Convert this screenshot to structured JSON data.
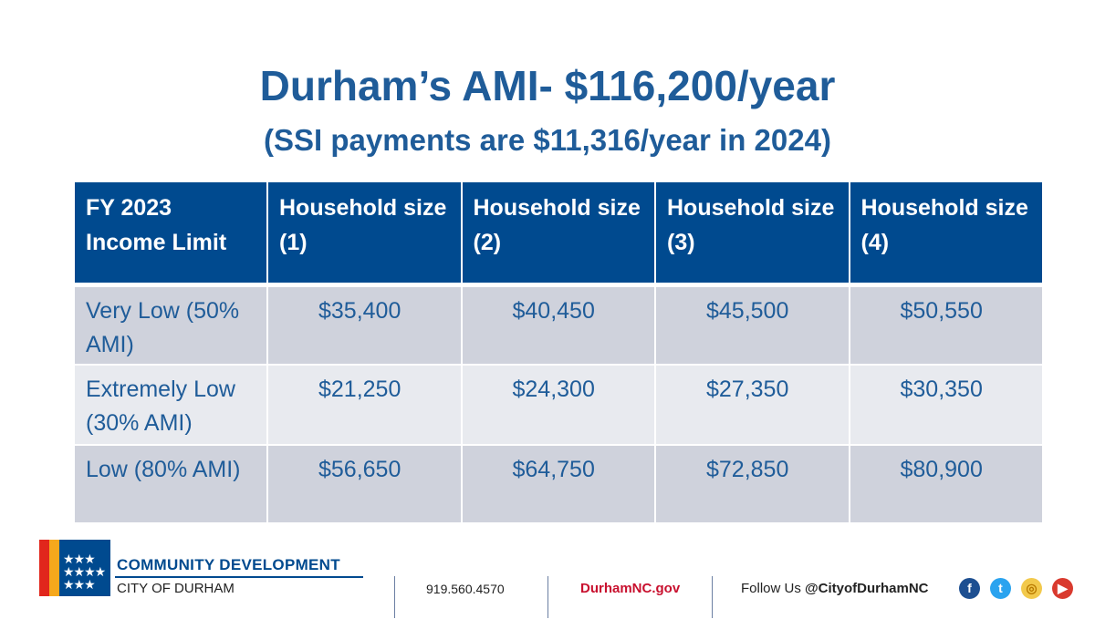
{
  "title": "Durham’s AMI- $116,200/year",
  "subtitle": "(SSI payments are $11,316/year in 2024)",
  "table": {
    "headers": [
      "FY 2023 Income Limit",
      "Household size (1)",
      "Household size (2)",
      "Household size (3)",
      "Household size (4)"
    ],
    "rows": [
      {
        "label": "Very Low (50% AMI)",
        "values": [
          "$35,400",
          "$40,450",
          "$45,500",
          "$50,550"
        ]
      },
      {
        "label": "Extremely Low (30% AMI)",
        "values": [
          "$21,250",
          "$24,300",
          "$27,350",
          "$30,350"
        ]
      },
      {
        "label": "Low (80% AMI)",
        "values": [
          "$56,650",
          "$64,750",
          "$72,850",
          "$80,900"
        ]
      }
    ]
  },
  "footer": {
    "org_name": "COMMUNITY DEVELOPMENT",
    "org_sub": "CITY OF DURHAM",
    "phone": "919.560.4570",
    "website": "DurhamNC.gov",
    "follow_label": "Follow Us",
    "handle": "@CityofDurhamNC",
    "social_icons": [
      "facebook-icon",
      "twitter-icon",
      "instagram-icon",
      "youtube-icon"
    ],
    "colors": {
      "brand_blue": "#004a8f",
      "red": "#e1261c",
      "gold": "#f6a81c"
    }
  }
}
